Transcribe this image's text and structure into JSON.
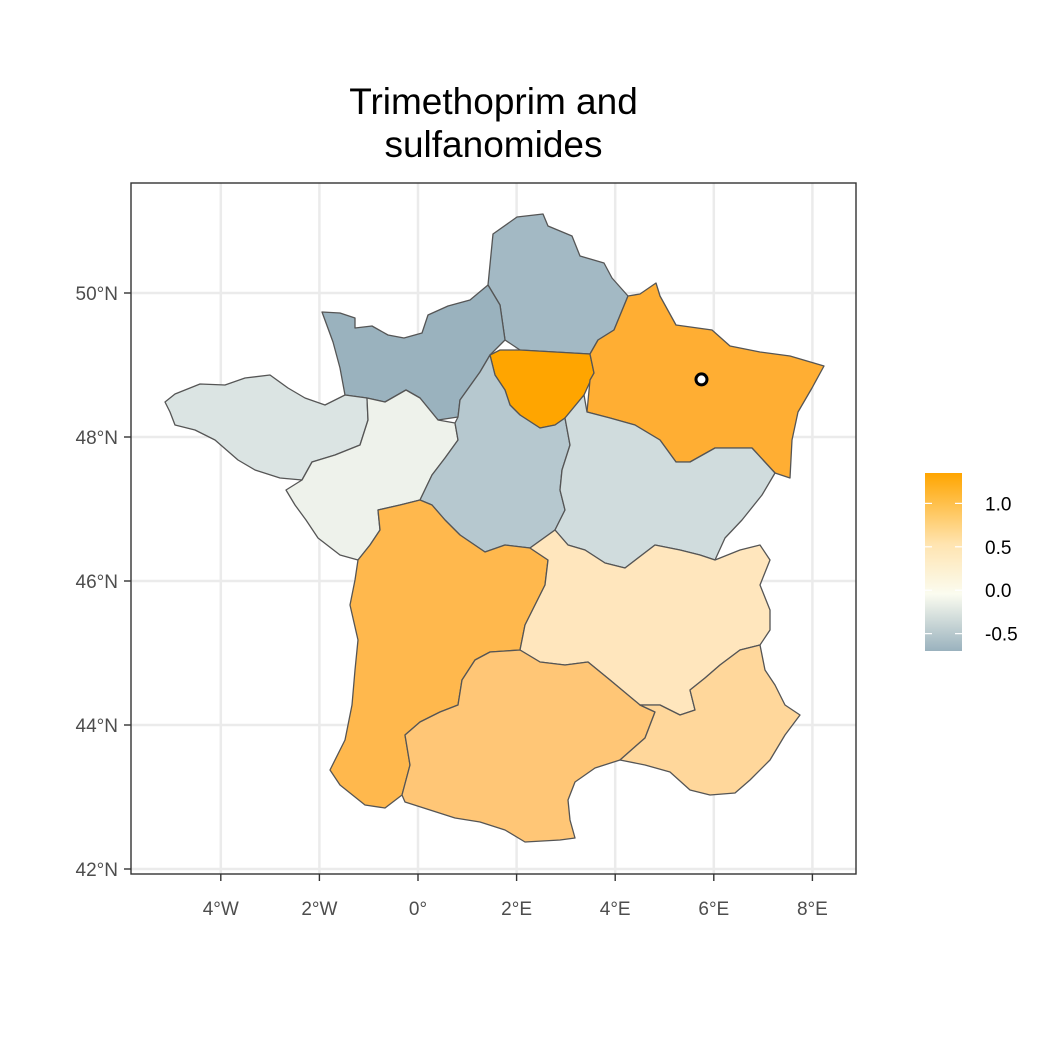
{
  "title_lines": [
    "Trimethoprim and",
    "sulfanomides"
  ],
  "map": {
    "x_ticks": [
      {
        "lon": -4,
        "label": "4°W"
      },
      {
        "lon": -2,
        "label": "2°W"
      },
      {
        "lon": 0,
        "label": "0°"
      },
      {
        "lon": 2,
        "label": "2°E"
      },
      {
        "lon": 4,
        "label": "4°E"
      },
      {
        "lon": 6,
        "label": "6°E"
      },
      {
        "lon": 8,
        "label": "8°E"
      }
    ],
    "y_ticks": [
      {
        "lat": 50,
        "label": "50°N"
      },
      {
        "lat": 48,
        "label": "48°N"
      },
      {
        "lat": 46,
        "label": "46°N"
      },
      {
        "lat": 44,
        "label": "44°N"
      },
      {
        "lat": 42,
        "label": "42°N"
      }
    ],
    "regions": [
      {
        "name": "Hauts-de-France",
        "value": -0.5,
        "color": "#a3b9c4"
      },
      {
        "name": "Normandie",
        "value": -0.7,
        "color": "#9ab2be"
      },
      {
        "name": "Ile-de-France",
        "value": 1.3,
        "color": "#ffa500"
      },
      {
        "name": "Grand Est",
        "value": 1.0,
        "color": "#ffae33"
      },
      {
        "name": "Bretagne",
        "value": -0.15,
        "color": "#dbe4e3"
      },
      {
        "name": "Pays de la Loire",
        "value": 0.05,
        "color": "#eef2eb"
      },
      {
        "name": "Centre-Val de Loire",
        "value": -0.45,
        "color": "#b6c8cf"
      },
      {
        "name": "Bourgogne-Franche-Comté",
        "value": -0.25,
        "color": "#d0dcdd"
      },
      {
        "name": "Nouvelle-Aquitaine",
        "value": 0.9,
        "color": "#ffb84d"
      },
      {
        "name": "Auvergne-Rhône-Alpes",
        "value": 0.3,
        "color": "#ffe6bd"
      },
      {
        "name": "Occitanie",
        "value": 0.75,
        "color": "#ffc676"
      },
      {
        "name": "Provence-Alpes-Côte d'Azur",
        "value": 0.55,
        "color": "#ffd79b"
      }
    ],
    "point": {
      "lon": 5.75,
      "lat": 48.8
    }
  },
  "legend": {
    "range": [
      -0.7,
      1.35
    ],
    "ticks": [
      {
        "value": 1.0,
        "label": "1.0"
      },
      {
        "value": 0.5,
        "label": "0.5"
      },
      {
        "value": 0.0,
        "label": "0.0"
      },
      {
        "value": -0.5,
        "label": "-0.5"
      }
    ],
    "gradient_colors": [
      "#ffa500",
      "#ffe4b0",
      "#fbfcf0",
      "#9ab2be"
    ]
  }
}
